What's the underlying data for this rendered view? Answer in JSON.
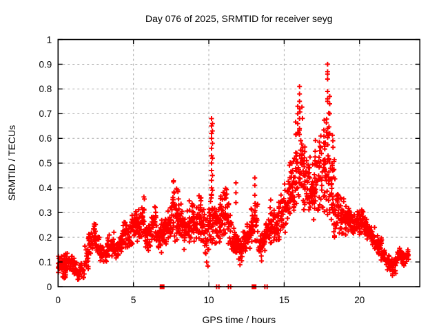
{
  "title": "Day 076 of 2025, SRMTID for receiver seyg",
  "colors": {
    "marker": "#ff0000",
    "grid": "#a8a8a8",
    "axis": "#000000",
    "background": "#ffffff"
  },
  "chart_data": {
    "type": "scatter",
    "title": "Day 076 of 2025, SRMTID for receiver seyg",
    "xlabel": "GPS time / hours",
    "ylabel": "SRMTID / TECUs",
    "xlim": [
      0,
      24
    ],
    "ylim": [
      0,
      1
    ],
    "xticks": [
      0,
      5,
      10,
      15,
      20
    ],
    "xtick_labels": [
      "0",
      "5",
      "10",
      "15",
      "20"
    ],
    "yticks": [
      0,
      0.1,
      0.2,
      0.3,
      0.4,
      0.5,
      0.6,
      0.7,
      0.8,
      0.9,
      1
    ],
    "ytick_labels": [
      "0",
      "0.1",
      "0.2",
      "0.3",
      "0.4",
      "0.5",
      "0.6",
      "0.7",
      "0.8",
      "0.9",
      "1"
    ],
    "grid": true,
    "legend": "none",
    "marker": "plus",
    "series_color": "#ff0000",
    "bucket_width": 0.25,
    "envelope": [
      [
        0.0,
        0.04,
        0.14,
        26
      ],
      [
        0.25,
        0.03,
        0.14,
        26
      ],
      [
        0.5,
        0.05,
        0.15,
        22
      ],
      [
        0.75,
        0.05,
        0.13,
        20
      ],
      [
        1.0,
        0.04,
        0.12,
        18
      ],
      [
        1.25,
        0.02,
        0.1,
        18
      ],
      [
        1.5,
        0.03,
        0.1,
        16
      ],
      [
        1.75,
        0.06,
        0.17,
        18
      ],
      [
        2.0,
        0.12,
        0.24,
        20
      ],
      [
        2.25,
        0.14,
        0.26,
        20
      ],
      [
        2.5,
        0.12,
        0.22,
        16
      ],
      [
        2.75,
        0.09,
        0.18,
        16
      ],
      [
        3.0,
        0.08,
        0.17,
        16
      ],
      [
        3.25,
        0.1,
        0.22,
        16
      ],
      [
        3.5,
        0.12,
        0.23,
        18
      ],
      [
        3.75,
        0.1,
        0.2,
        18
      ],
      [
        4.0,
        0.12,
        0.22,
        16
      ],
      [
        4.25,
        0.14,
        0.28,
        18
      ],
      [
        4.5,
        0.13,
        0.26,
        18
      ],
      [
        4.75,
        0.15,
        0.3,
        20
      ],
      [
        5.0,
        0.17,
        0.33,
        22
      ],
      [
        5.25,
        0.15,
        0.35,
        22
      ],
      [
        5.5,
        0.15,
        0.4,
        20
      ],
      [
        5.75,
        0.13,
        0.28,
        20
      ],
      [
        6.0,
        0.14,
        0.3,
        20
      ],
      [
        6.25,
        0.15,
        0.35,
        20
      ],
      [
        6.5,
        0.12,
        0.28,
        20
      ],
      [
        6.75,
        0.13,
        0.3,
        20
      ],
      [
        7.0,
        0.15,
        0.3,
        22
      ],
      [
        7.25,
        0.15,
        0.35,
        22
      ],
      [
        7.5,
        0.17,
        0.43,
        24
      ],
      [
        7.75,
        0.17,
        0.4,
        24
      ],
      [
        8.0,
        0.15,
        0.35,
        22
      ],
      [
        8.25,
        0.15,
        0.33,
        22
      ],
      [
        8.5,
        0.1,
        0.38,
        22
      ],
      [
        8.75,
        0.18,
        0.38,
        22
      ],
      [
        9.0,
        0.15,
        0.33,
        22
      ],
      [
        9.25,
        0.16,
        0.4,
        22
      ],
      [
        9.5,
        0.15,
        0.35,
        20
      ],
      [
        9.75,
        0.05,
        0.3,
        20
      ],
      [
        10.0,
        0.15,
        0.45,
        22
      ],
      [
        10.25,
        0.15,
        0.4,
        20
      ],
      [
        10.5,
        0.17,
        0.35,
        20
      ],
      [
        10.75,
        0.18,
        0.4,
        22
      ],
      [
        11.0,
        0.18,
        0.42,
        22
      ],
      [
        11.25,
        0.15,
        0.38,
        20
      ],
      [
        11.5,
        0.12,
        0.25,
        20
      ],
      [
        11.75,
        0.1,
        0.22,
        20
      ],
      [
        12.0,
        0.08,
        0.2,
        20
      ],
      [
        12.25,
        0.12,
        0.24,
        20
      ],
      [
        12.5,
        0.14,
        0.27,
        20
      ],
      [
        12.75,
        0.15,
        0.33,
        20
      ],
      [
        13.0,
        0.14,
        0.4,
        20
      ],
      [
        13.25,
        0.1,
        0.22,
        18
      ],
      [
        13.5,
        0.12,
        0.25,
        18
      ],
      [
        13.75,
        0.14,
        0.3,
        20
      ],
      [
        14.0,
        0.15,
        0.36,
        20
      ],
      [
        14.25,
        0.16,
        0.32,
        20
      ],
      [
        14.5,
        0.18,
        0.35,
        20
      ],
      [
        14.75,
        0.19,
        0.4,
        22
      ],
      [
        15.0,
        0.2,
        0.45,
        22
      ],
      [
        15.25,
        0.24,
        0.55,
        24
      ],
      [
        15.5,
        0.25,
        0.6,
        24
      ],
      [
        15.75,
        0.28,
        0.72,
        26
      ],
      [
        16.0,
        0.3,
        0.78,
        26
      ],
      [
        16.25,
        0.28,
        0.6,
        24
      ],
      [
        16.5,
        0.27,
        0.55,
        24
      ],
      [
        16.75,
        0.25,
        0.55,
        24
      ],
      [
        17.0,
        0.27,
        0.6,
        24
      ],
      [
        17.25,
        0.28,
        0.63,
        24
      ],
      [
        17.5,
        0.25,
        0.68,
        26
      ],
      [
        17.75,
        0.2,
        0.8,
        28
      ],
      [
        18.0,
        0.17,
        0.72,
        28
      ],
      [
        18.25,
        0.15,
        0.55,
        24
      ],
      [
        18.5,
        0.2,
        0.42,
        22
      ],
      [
        18.75,
        0.2,
        0.38,
        22
      ],
      [
        19.0,
        0.18,
        0.35,
        22
      ],
      [
        19.25,
        0.2,
        0.33,
        20
      ],
      [
        19.5,
        0.2,
        0.31,
        20
      ],
      [
        19.75,
        0.21,
        0.33,
        20
      ],
      [
        20.0,
        0.21,
        0.34,
        20
      ],
      [
        20.25,
        0.19,
        0.3,
        20
      ],
      [
        20.5,
        0.17,
        0.28,
        20
      ],
      [
        20.75,
        0.15,
        0.25,
        18
      ],
      [
        21.0,
        0.13,
        0.22,
        18
      ],
      [
        21.25,
        0.1,
        0.2,
        18
      ],
      [
        21.5,
        0.08,
        0.16,
        18
      ],
      [
        21.75,
        0.06,
        0.14,
        18
      ],
      [
        22.0,
        0.04,
        0.12,
        18
      ],
      [
        22.25,
        0.05,
        0.13,
        18
      ],
      [
        22.5,
        0.07,
        0.16,
        18
      ],
      [
        22.75,
        0.08,
        0.16,
        18
      ],
      [
        23.0,
        0.09,
        0.16,
        14
      ]
    ],
    "spikes": [
      {
        "x": 10.18,
        "ys": [
          0.37,
          0.4,
          0.43,
          0.47,
          0.5,
          0.53,
          0.56,
          0.6,
          0.62,
          0.65,
          0.68
        ]
      },
      {
        "x": 10.24,
        "ys": [
          0.39,
          0.45,
          0.52,
          0.58,
          0.63,
          0.66
        ]
      },
      {
        "x": 11.8,
        "ys": [
          0.34,
          0.38,
          0.42
        ]
      },
      {
        "x": 13.05,
        "ys": [
          0.37,
          0.41,
          0.44
        ]
      },
      {
        "x": 15.9,
        "ys": [
          0.62,
          0.66,
          0.7,
          0.73
        ]
      },
      {
        "x": 16.02,
        "ys": [
          0.64,
          0.68,
          0.72,
          0.75,
          0.78,
          0.81
        ]
      },
      {
        "x": 17.88,
        "ys": [
          0.75,
          0.76,
          0.79,
          0.84,
          0.86,
          0.87,
          0.9
        ]
      },
      {
        "x": 18.02,
        "ys": [
          0.62,
          0.7,
          0.74,
          0.77
        ]
      }
    ],
    "baseline_squares_x": [
      6.9,
      13.0
    ],
    "baseline_plus_x": [
      10.52,
      10.67,
      11.3,
      11.45,
      13.72,
      13.87
    ]
  }
}
